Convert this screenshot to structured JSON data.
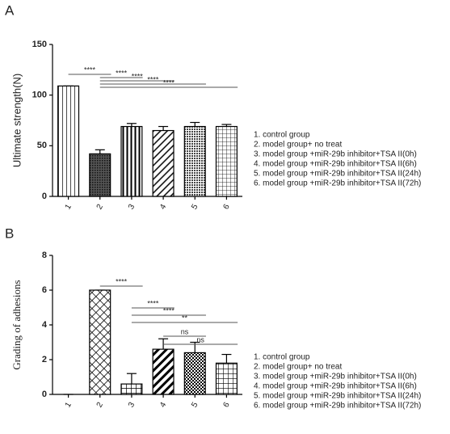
{
  "chart_data": [
    {
      "type": "bar",
      "panel_label": "A",
      "ylabel": "Ultimate strength(N)",
      "categories": [
        "1",
        "2",
        "3",
        "4",
        "5",
        "6"
      ],
      "values": [
        109,
        42,
        69,
        65,
        69,
        69
      ],
      "errors": [
        0,
        4,
        3,
        4,
        4,
        2
      ],
      "ylim": [
        0,
        150
      ],
      "yticks": [
        0,
        50,
        100,
        150
      ],
      "color": "#000000",
      "annotations": [
        "****",
        "****",
        "****",
        "****",
        "****"
      ],
      "legend": [
        "1. control group",
        "2. model group+ no treat",
        "3. model group +miR-29b inhibitor+TSA II(0h)",
        "4. model group +miR-29b inhibitor+TSA II(6h)",
        "5. model group +miR-29b inhibitor+TSA II(24h)",
        "6. model group +miR-29b inhibitor+TSA II(72h)"
      ]
    },
    {
      "type": "bar",
      "panel_label": "B",
      "ylabel": "Grading of adhesions",
      "categories": [
        "1",
        "2",
        "3",
        "4",
        "5",
        "6"
      ],
      "values": [
        0,
        6,
        0.6,
        2.6,
        2.4,
        1.8
      ],
      "errors": [
        0,
        0,
        0.6,
        0.6,
        0.6,
        0.5
      ],
      "ylim": [
        0,
        8
      ],
      "yticks": [
        0,
        2,
        4,
        6,
        8
      ],
      "color": "#000000",
      "annotations": [
        "****",
        "****",
        "****",
        "**",
        "ns",
        "ns"
      ],
      "legend": [
        "1. control group",
        "2. model group+ no treat",
        "3. model group +miR-29b inhibitor+TSA II(0h)",
        "4. model group +miR-29b inhibitor+TSA II(6h)",
        "5. model group +miR-29b inhibitor+TSA II(24h)",
        "6. model group +miR-29b inhibitor+TSA II(72h)"
      ]
    }
  ]
}
